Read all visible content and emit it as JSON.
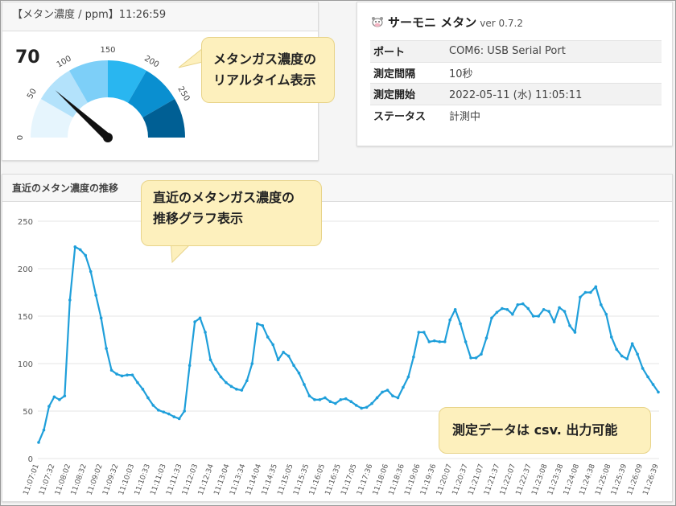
{
  "gauge": {
    "header": "【メタン濃度 / ppm】11:26:59",
    "value": "70",
    "value_num": 70,
    "min": 0,
    "max": 300,
    "ticks": [
      "0",
      "50",
      "100",
      "150",
      "200",
      "250"
    ],
    "band_colors": [
      "#e6f5fd",
      "#b3e2fb",
      "#7dcff8",
      "#29b6f0",
      "#0a8fd0",
      "#005f94"
    ]
  },
  "info": {
    "app_name": "サーモニ メタン",
    "version": "ver 0.7.2",
    "rows": [
      {
        "key": "ポート",
        "value": "COM6: USB Serial Port"
      },
      {
        "key": "測定間隔",
        "value": "10秒"
      },
      {
        "key": "測定開始",
        "value": "2022-05-11 (水) 11:05:11"
      },
      {
        "key": "ステータス",
        "value": "計測中"
      }
    ]
  },
  "callouts": {
    "gauge_line1": "メタンガス濃度の",
    "gauge_line2": "リアルタイム表示",
    "chart_line1": "直近のメタンガス濃度の",
    "chart_line2": "推移グラフ表示",
    "csv": "測定データは csv. 出力可能",
    "color": "#fdf0bd"
  },
  "chart": {
    "header": "直近のメタン濃度の推移"
  },
  "chart_data": {
    "type": "line",
    "title": "直近のメタン濃度の推移",
    "ylim": [
      0,
      250
    ],
    "yticks": [
      0,
      50,
      100,
      150,
      200,
      250
    ],
    "grid": true,
    "line_color": "#1f9fda",
    "x_labels": [
      "11:07:01",
      "11:07:32",
      "11:08:02",
      "11:08:32",
      "11:09:02",
      "11:09:32",
      "11:10:03",
      "11:10:33",
      "11:11:03",
      "11:11:33",
      "11:12:03",
      "11:12:34",
      "11:13:04",
      "11:13:34",
      "11:14:04",
      "11:14:35",
      "11:15:05",
      "11:15:35",
      "11:16:05",
      "11:16:35",
      "11:17:05",
      "11:17:36",
      "11:18:06",
      "11:18:36",
      "11:19:06",
      "11:19:36",
      "11:20:07",
      "11:20:37",
      "11:21:07",
      "11:21:37",
      "11:22:07",
      "11:22:37",
      "11:23:08",
      "11:23:38",
      "11:24:08",
      "11:24:38",
      "11:25:08",
      "11:25:39",
      "11:26:09",
      "11:26:39"
    ],
    "values": [
      17,
      30,
      55,
      65,
      62,
      66,
      167,
      223,
      220,
      214,
      197,
      172,
      148,
      116,
      93,
      89,
      87,
      88,
      88,
      80,
      73,
      64,
      56,
      51,
      49,
      47,
      44,
      42,
      50,
      98,
      144,
      148,
      133,
      104,
      94,
      86,
      80,
      76,
      73,
      72,
      82,
      100,
      142,
      140,
      128,
      120,
      104,
      112,
      108,
      98,
      90,
      78,
      66,
      62,
      62,
      64,
      60,
      58,
      62,
      63,
      60,
      56,
      53,
      54,
      58,
      64,
      70,
      72,
      66,
      64,
      75,
      86,
      107,
      133,
      133,
      123,
      124,
      123,
      123,
      146,
      157,
      142,
      123,
      106,
      106,
      110,
      127,
      148,
      154,
      158,
      157,
      152,
      162,
      163,
      158,
      150,
      150,
      157,
      155,
      144,
      159,
      155,
      140,
      133,
      170,
      175,
      175,
      181,
      162,
      152,
      128,
      115,
      108,
      105,
      121,
      110,
      95,
      86,
      78,
      70
    ]
  }
}
